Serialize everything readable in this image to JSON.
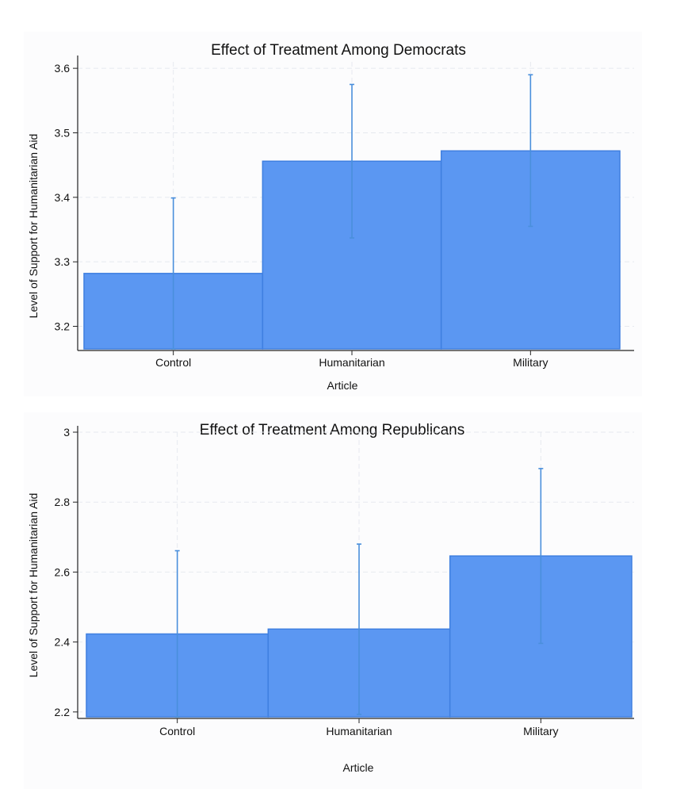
{
  "colors": {
    "bar_fill": "#5b97f2",
    "bar_edge": "#3f7fe0",
    "error_bar": "#4a8fdc",
    "grid": "#e6e9ef",
    "axis": "#222222"
  },
  "chart_data": [
    {
      "type": "bar",
      "title": "Effect of Treatment Among Democrats",
      "xlabel": "Article",
      "ylabel": "Level of Support for Humanitarian Aid",
      "categories": [
        "Control",
        "Humanitarian",
        "Military"
      ],
      "values": [
        3.282,
        3.456,
        3.472
      ],
      "ci_low": [
        3.165,
        3.337,
        3.355
      ],
      "ci_high": [
        3.399,
        3.575,
        3.59
      ],
      "ylim": [
        3.165,
        3.61
      ],
      "yticks": [
        3.2,
        3.3,
        3.4,
        3.5,
        3.6
      ],
      "ytick_labels": [
        "3.2",
        "3.3",
        "3.4",
        "3.5",
        "3.6"
      ],
      "grid": true,
      "legend": "none"
    },
    {
      "type": "bar",
      "title": "Effect of Treatment Among Republicans",
      "xlabel": "Article",
      "ylabel": "Level of Support for Humanitarian Aid",
      "categories": [
        "Control",
        "Humanitarian",
        "Military"
      ],
      "values": [
        2.423,
        2.437,
        2.646
      ],
      "ci_low": [
        2.186,
        2.193,
        2.396
      ],
      "ci_high": [
        2.661,
        2.68,
        2.896
      ],
      "ylim": [
        2.186,
        3.0
      ],
      "yticks": [
        2.2,
        2.4,
        2.6,
        2.8,
        3.0
      ],
      "ytick_labels": [
        "2.2",
        "2.4",
        "2.6",
        "2.8",
        "3"
      ],
      "grid": true,
      "legend": "none"
    }
  ]
}
